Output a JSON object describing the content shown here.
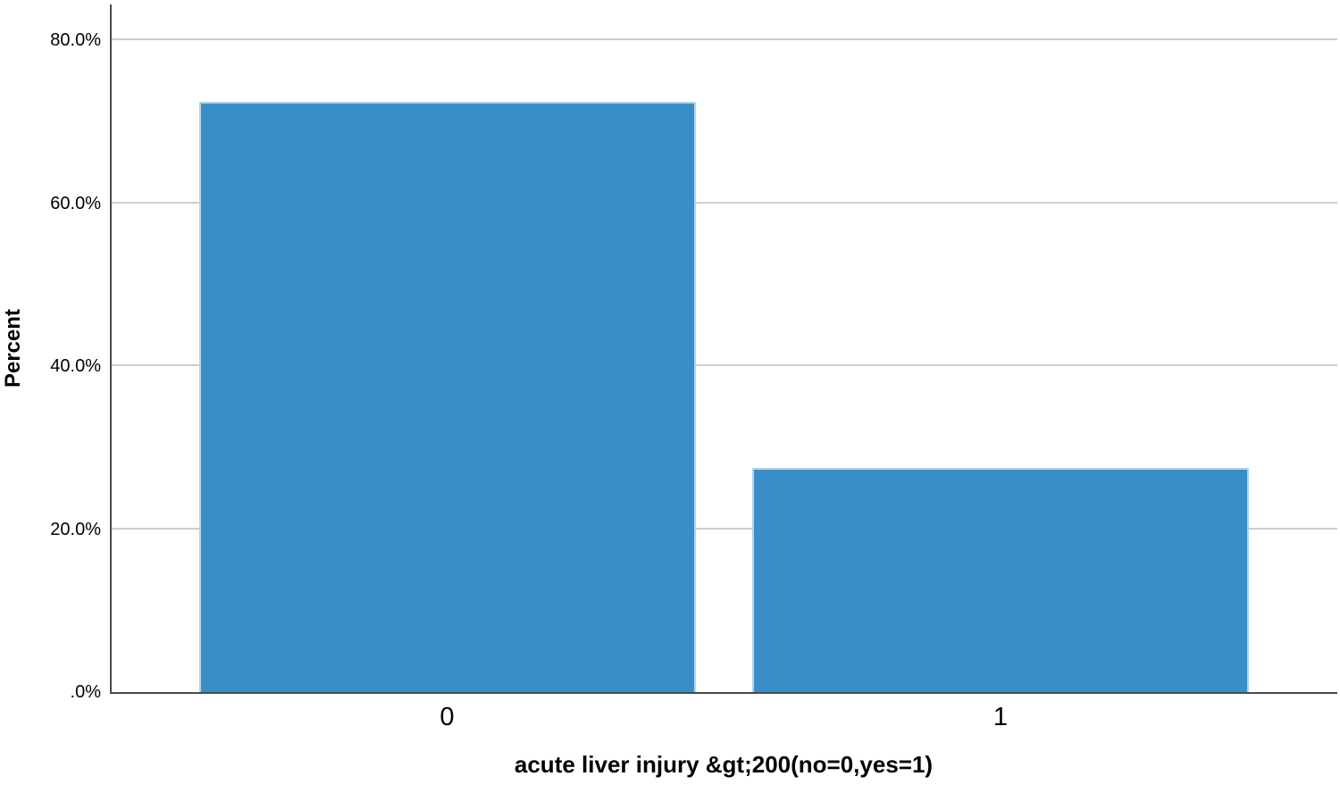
{
  "chart_data": {
    "type": "bar",
    "title": "",
    "xlabel": "acute liver injury &gt;200(no=0,yes=1)",
    "ylabel": "Percent",
    "categories": [
      "0",
      "1"
    ],
    "values": [
      72.5,
      27.5
    ],
    "value_unit": "%",
    "ylim": [
      0,
      84.4
    ],
    "yticks": [
      {
        "value": 0,
        "label": ".0%"
      },
      {
        "value": 20,
        "label": "20.0%"
      },
      {
        "value": 40,
        "label": "40.0%"
      },
      {
        "value": 60,
        "label": "60.0%"
      },
      {
        "value": 80,
        "label": "80.0%"
      }
    ],
    "grid": true,
    "legend_position": "none",
    "colors": {
      "bar_fill": "#3a8ec8",
      "bar_edge": "#aed4ee",
      "axis_line": "#4a4a4a",
      "gridline": "#cdcdcd",
      "text": "#000000"
    }
  }
}
